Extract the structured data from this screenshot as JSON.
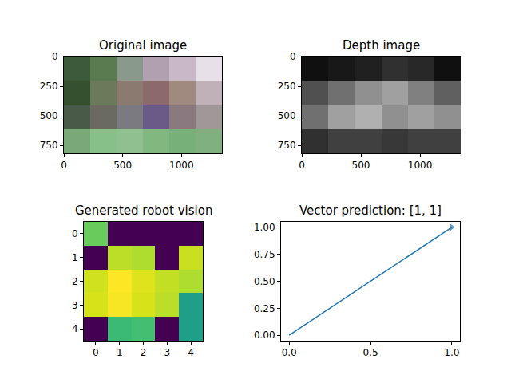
{
  "chart_data": [
    {
      "type": "image",
      "title": "Original image",
      "xlim": [
        0,
        1344
      ],
      "ylim": [
        816,
        0
      ],
      "xticks": [
        0,
        500,
        1000
      ],
      "yticks": [
        0,
        250,
        500,
        750
      ],
      "grid": false,
      "pixels": [
        [
          "#3d5a3a",
          "#5a7a50",
          "#8a9a8a",
          "#b0a0b0",
          "#c8b8c8",
          "#e8e0e8"
        ],
        [
          "#34502f",
          "#6a7a5a",
          "#8a7a70",
          "#8a6a6a",
          "#a08a80",
          "#c0b0b8"
        ],
        [
          "#4a5a48",
          "#6a6a60",
          "#7a7a80",
          "#6a5a88",
          "#8a7a80",
          "#a09898"
        ],
        [
          "#7aa878",
          "#88c08a",
          "#90c090",
          "#80b880",
          "#78b07a",
          "#80b080"
        ]
      ]
    },
    {
      "type": "image",
      "title": "Depth image",
      "xlim": [
        0,
        1344
      ],
      "ylim": [
        816,
        0
      ],
      "xticks": [
        0,
        500,
        1000
      ],
      "yticks": [
        0,
        250,
        500,
        750
      ],
      "grid": false,
      "pixels": [
        [
          "#101010",
          "#181818",
          "#202020",
          "#303030",
          "#282828",
          "#101010"
        ],
        [
          "#505050",
          "#707070",
          "#909090",
          "#a0a0a0",
          "#808080",
          "#606060"
        ],
        [
          "#707070",
          "#a0a0a0",
          "#b0b0b0",
          "#909090",
          "#a0a0a0",
          "#909090"
        ],
        [
          "#303030",
          "#404040",
          "#404040",
          "#383838",
          "#404040",
          "#404040"
        ]
      ]
    },
    {
      "type": "heatmap",
      "title": "Generated robot vision",
      "xlim": [
        -0.5,
        4.5
      ],
      "ylim": [
        4.5,
        -0.5
      ],
      "xticks": [
        0,
        1,
        2,
        3,
        4
      ],
      "yticks": [
        0,
        1,
        2,
        3,
        4
      ],
      "grid": false,
      "color": "Viridis",
      "cells": [
        [
          0.77,
          0,
          0,
          0,
          0
        ],
        [
          0,
          0.9,
          0.88,
          0,
          0.92
        ],
        [
          0.93,
          1.0,
          0.95,
          0.91,
          0.88
        ],
        [
          0.94,
          0.99,
          0.94,
          0.9,
          0.56
        ],
        [
          0,
          0.68,
          0.7,
          0,
          0.56
        ]
      ]
    },
    {
      "type": "line",
      "title": "Vector prediction: [1, 1]",
      "x": [
        0,
        1
      ],
      "values": [
        0,
        1
      ],
      "xlim": [
        -0.05,
        1.05
      ],
      "ylim": [
        -0.05,
        1.05
      ],
      "xticks": [
        {
          "value": 0,
          "label": "0.0"
        },
        {
          "value": 0.5,
          "label": "0.5"
        },
        {
          "value": 1,
          "label": "1.0"
        }
      ],
      "yticks": [
        {
          "value": 0,
          "label": "0.00"
        },
        {
          "value": 0.25,
          "label": "0.25"
        },
        {
          "value": 0.5,
          "label": "0.50"
        },
        {
          "value": 0.75,
          "label": "0.75"
        },
        {
          "value": 1,
          "label": "1.00"
        }
      ],
      "grid": false,
      "color": "#1f77b4",
      "marker": "triangle-right",
      "line_style": "solid"
    }
  ]
}
